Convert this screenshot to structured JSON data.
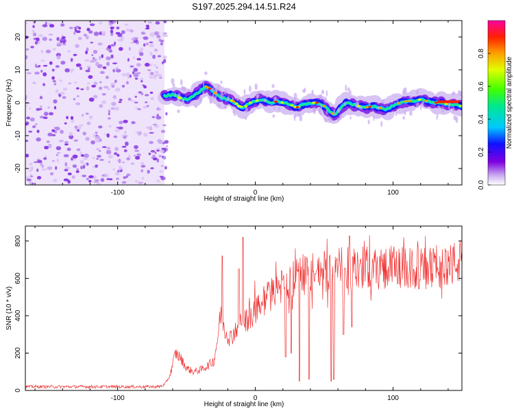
{
  "title": "S197.2025.294.14.51.R24",
  "chart_data": [
    {
      "type": "heatmap",
      "name": "spectrogram",
      "xlabel": "Height of straight line (km)",
      "ylabel": "Frequency (Hz)",
      "xlim": [
        -167,
        150
      ],
      "ylim": [
        -25,
        25
      ],
      "xticks": [
        -100,
        0,
        100
      ],
      "xtick_labels": [
        "-100",
        "0",
        "100"
      ],
      "yticks": [
        -20,
        -10,
        0,
        10,
        20
      ],
      "ytick_labels": [
        "-20",
        "-10",
        "0",
        "10",
        "20"
      ],
      "noise_region_x": [
        -167,
        -66
      ],
      "signal_start_x": -66,
      "ridge": {
        "x": [
          -66,
          -60,
          -55,
          -50,
          -45,
          -40,
          -36,
          -32,
          -28,
          -24,
          -20,
          -16,
          -12,
          -8,
          -4,
          0,
          4,
          8,
          12,
          16,
          20,
          25,
          30,
          35,
          40,
          45,
          50,
          55,
          58,
          62,
          66,
          70,
          75,
          80,
          85,
          90,
          95,
          100,
          105,
          110,
          115,
          120,
          125,
          130,
          135,
          140,
          145,
          150
        ],
        "y": [
          2,
          2.5,
          1.5,
          1,
          2,
          3.5,
          5,
          4,
          2.5,
          1.5,
          1,
          0.5,
          -1,
          -1.5,
          0,
          0.5,
          1,
          0.5,
          0,
          0.5,
          0,
          -0.5,
          -1.5,
          -0.5,
          0,
          0,
          -1,
          -3,
          -4,
          -1.5,
          0,
          -0.5,
          -1,
          -1.5,
          -1,
          -1.5,
          -2,
          -1,
          0,
          0.5,
          0.5,
          1,
          0.5,
          0,
          0,
          -0.5,
          -0.5,
          -1
        ]
      },
      "colorbar": {
        "label": "Normalized spectral amplitude",
        "range": [
          0,
          1
        ],
        "ticks": [
          0.0,
          0.2,
          0.4,
          0.6,
          0.8
        ],
        "tick_labels": [
          "0.0",
          "0.2",
          "0.4",
          "0.6",
          "0.8"
        ]
      }
    },
    {
      "type": "line",
      "name": "snr",
      "series": [
        {
          "name": "SNR",
          "color": "#f03030"
        }
      ],
      "xlabel": "Height of straight line (km)",
      "ylabel": "SNR (10 * v/v)",
      "xlim": [
        -167,
        150
      ],
      "ylim": [
        0,
        880
      ],
      "xticks": [
        -100,
        0,
        100
      ],
      "xtick_labels": [
        "-100",
        "0",
        "100"
      ],
      "yticks": [
        0,
        200,
        400,
        600,
        800
      ],
      "ytick_labels": [
        "0",
        "200",
        "400",
        "600",
        "800"
      ],
      "envelope": {
        "x": [
          -167,
          -70,
          -66,
          -62,
          -58,
          -55,
          -50,
          -45,
          -40,
          -35,
          -30,
          -27,
          -25,
          -22,
          -18,
          -14,
          -10,
          -6,
          -2,
          0,
          5,
          10,
          15,
          20,
          30,
          40,
          50,
          60,
          70,
          80,
          90,
          100,
          110,
          120,
          130,
          140,
          150
        ],
        "y": [
          20,
          20,
          30,
          80,
          200,
          180,
          120,
          100,
          110,
          130,
          160,
          300,
          420,
          320,
          280,
          330,
          380,
          380,
          400,
          430,
          470,
          510,
          540,
          560,
          610,
          630,
          640,
          650,
          650,
          660,
          660,
          660,
          650,
          650,
          660,
          670,
          690
        ]
      },
      "spikes": [
        {
          "x": -24,
          "y": 720
        },
        {
          "x": -9,
          "y": 820
        },
        {
          "x": -12,
          "y": 650
        }
      ],
      "dropouts": [
        {
          "x": 32,
          "y": 50
        },
        {
          "x": 39,
          "y": 60
        },
        {
          "x": 55,
          "y": 50
        },
        {
          "x": 57,
          "y": 60
        },
        {
          "x": 22,
          "y": 180
        },
        {
          "x": 26,
          "y": 200
        },
        {
          "x": 64,
          "y": 300
        },
        {
          "x": 70,
          "y": 340
        }
      ]
    }
  ]
}
